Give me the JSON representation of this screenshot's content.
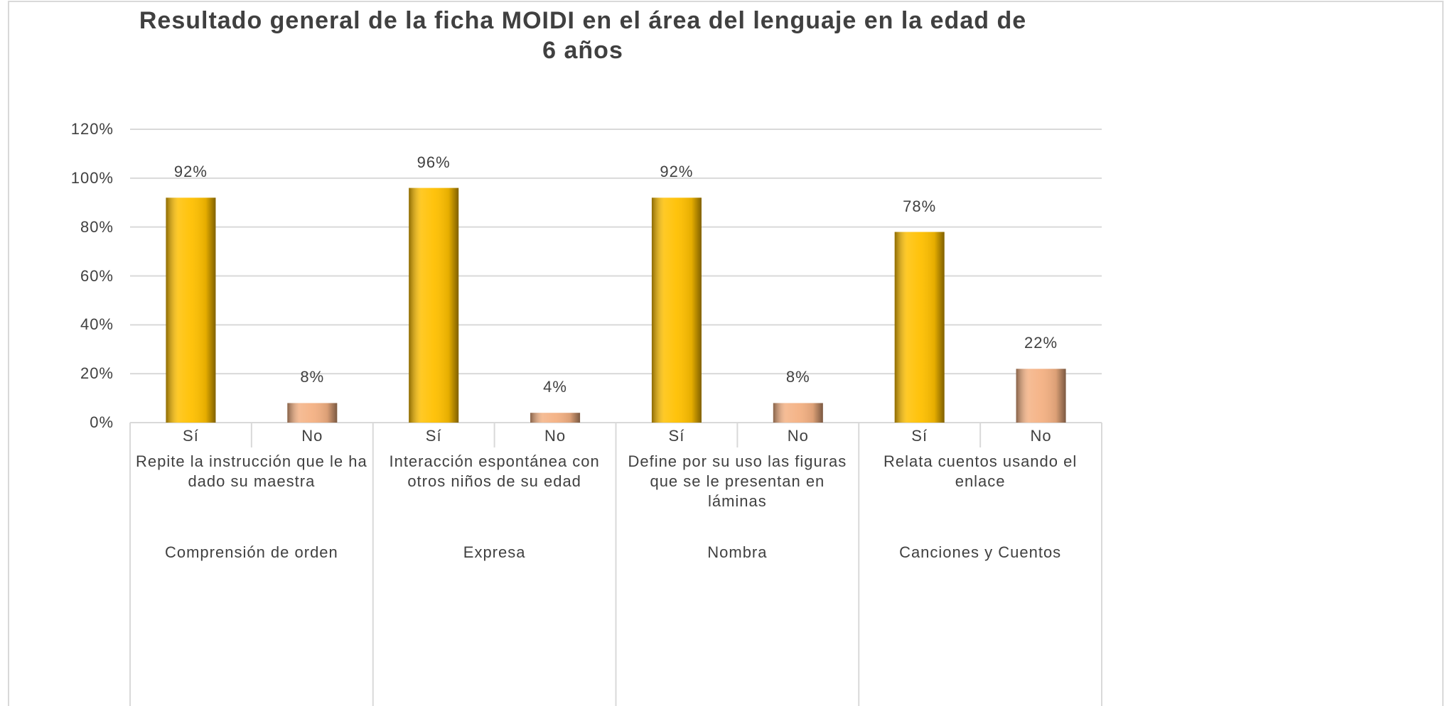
{
  "chart_data": {
    "type": "bar",
    "title": "Resultado general de la ficha MOIDI en el área del lenguaje en la edad de 6 años",
    "categories": [
      "Sí",
      "No",
      "Sí",
      "No",
      "Sí",
      "No",
      "Sí",
      "No"
    ],
    "values": [
      92,
      8,
      96,
      4,
      92,
      8,
      78,
      22
    ],
    "value_labels": [
      "92%",
      "8%",
      "96%",
      "4%",
      "92%",
      "8%",
      "78%",
      "22%"
    ],
    "colors": [
      "#ffc000",
      "#f4b183",
      "#ffc000",
      "#f4b183",
      "#ffc000",
      "#f4b183",
      "#ffc000",
      "#f4b183"
    ],
    "subgroups": [
      "Repite la instrucción que le ha dado su maestra",
      "Interacción espontánea con otros niños de su edad",
      "Define por su uso las figuras que se le presentan en láminas",
      "Relata cuentos usando el enlace"
    ],
    "groups": [
      "Comprensión de orden",
      "Expresa",
      "Nombra",
      "Canciones y Cuentos"
    ],
    "ylim": [
      0,
      120
    ],
    "yticks": [
      {
        "value": 0,
        "label": "0%"
      },
      {
        "value": 20,
        "label": "20%"
      },
      {
        "value": 40,
        "label": "40%"
      },
      {
        "value": 60,
        "label": "60%"
      },
      {
        "value": 80,
        "label": "80%"
      },
      {
        "value": 100,
        "label": "100%"
      },
      {
        "value": 120,
        "label": "120%"
      }
    ],
    "grid": true
  }
}
